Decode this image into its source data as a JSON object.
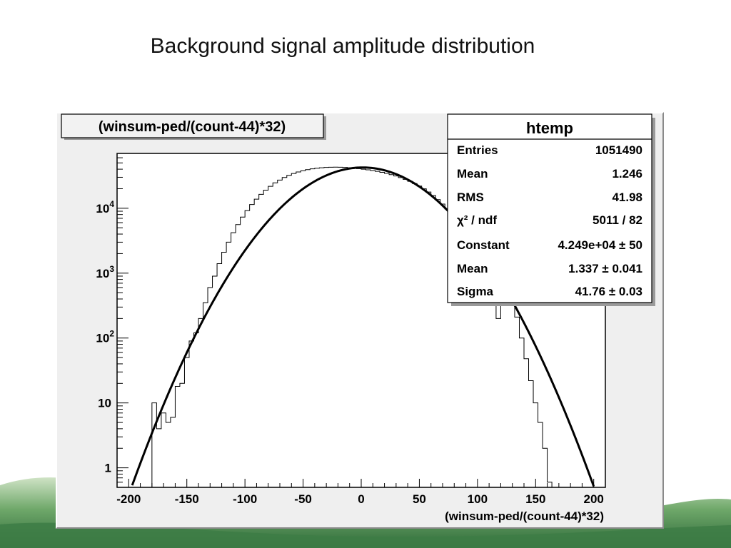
{
  "slide": {
    "title": "Background signal amplitude distribution"
  },
  "chart_data": {
    "type": "histogram",
    "title": "(winsum-ped/(count-44)*32)",
    "xlabel": "(winsum-ped/(count-44)*32)",
    "ylabel": "",
    "xlim": [
      -210,
      210
    ],
    "ylim": [
      0.5,
      70000
    ],
    "yscale": "log",
    "x_ticks": [
      "-200",
      "-150",
      "-100",
      "-50",
      "0",
      "50",
      "100",
      "150",
      "200"
    ],
    "y_ticks": [
      {
        "value": 1,
        "label": "1",
        "sup": ""
      },
      {
        "value": 10,
        "label": "10",
        "sup": ""
      },
      {
        "value": 100,
        "label": "10",
        "sup": "2"
      },
      {
        "value": 1000,
        "label": "10",
        "sup": "3"
      },
      {
        "value": 10000,
        "label": "10",
        "sup": "4"
      }
    ],
    "series": [
      {
        "kind": "histogram",
        "bins": [
          [
            -180,
            10
          ],
          [
            -176,
            4
          ],
          [
            -172,
            7
          ],
          [
            -168,
            5
          ],
          [
            -164,
            6
          ],
          [
            -160,
            18
          ],
          [
            -156,
            20
          ],
          [
            -152,
            50
          ],
          [
            -148,
            90
          ],
          [
            -144,
            120
          ],
          [
            -140,
            200
          ],
          [
            -136,
            350
          ],
          [
            -132,
            600
          ],
          [
            -128,
            900
          ],
          [
            -124,
            1400
          ],
          [
            -120,
            2100
          ],
          [
            -116,
            3000
          ],
          [
            -112,
            4200
          ],
          [
            -108,
            5600
          ],
          [
            -104,
            7300
          ],
          [
            -100,
            9200
          ],
          [
            -96,
            11400
          ],
          [
            -92,
            13800
          ],
          [
            -88,
            16400
          ],
          [
            -84,
            19000
          ],
          [
            -80,
            21800
          ],
          [
            -76,
            24600
          ],
          [
            -72,
            27200
          ],
          [
            -68,
            29800
          ],
          [
            -64,
            32100
          ],
          [
            -60,
            34300
          ],
          [
            -56,
            36200
          ],
          [
            -52,
            37900
          ],
          [
            -48,
            39300
          ],
          [
            -44,
            40500
          ],
          [
            -40,
            41400
          ],
          [
            -36,
            42100
          ],
          [
            -32,
            42600
          ],
          [
            -28,
            42900
          ],
          [
            -24,
            43000
          ],
          [
            -20,
            42900
          ],
          [
            -16,
            42600
          ],
          [
            -12,
            42100
          ],
          [
            -8,
            41500
          ],
          [
            -4,
            40800
          ],
          [
            0,
            40000
          ],
          [
            4,
            39100
          ],
          [
            8,
            38100
          ],
          [
            12,
            37000
          ],
          [
            16,
            35800
          ],
          [
            20,
            34400
          ],
          [
            24,
            33000
          ],
          [
            28,
            31400
          ],
          [
            32,
            29700
          ],
          [
            36,
            27900
          ],
          [
            40,
            26000
          ],
          [
            44,
            24000
          ],
          [
            48,
            22000
          ],
          [
            52,
            19900
          ],
          [
            56,
            17800
          ],
          [
            60,
            15700
          ],
          [
            64,
            13600
          ],
          [
            68,
            11600
          ],
          [
            72,
            9700
          ],
          [
            76,
            7900
          ],
          [
            80,
            6300
          ],
          [
            84,
            4900
          ],
          [
            88,
            3700
          ],
          [
            92,
            2700
          ],
          [
            96,
            1900
          ],
          [
            100,
            1300
          ],
          [
            104,
            850
          ],
          [
            108,
            540
          ],
          [
            112,
            330
          ],
          [
            116,
            200
          ],
          [
            120,
            1200
          ],
          [
            124,
            800
          ],
          [
            128,
            420
          ],
          [
            132,
            210
          ],
          [
            136,
            100
          ],
          [
            140,
            48
          ],
          [
            144,
            22
          ],
          [
            148,
            10
          ],
          [
            152,
            5
          ],
          [
            156,
            2
          ],
          [
            160,
            0.6
          ]
        ]
      },
      {
        "kind": "gaussian-fit",
        "constant": 42490,
        "mean": 1.337,
        "sigma": 41.76
      }
    ],
    "stats_box": {
      "title": "htemp",
      "rows": [
        {
          "label": "Entries",
          "value": "1051490"
        },
        {
          "label": "Mean",
          "value": "1.246"
        },
        {
          "label": "RMS",
          "value": "41.98"
        },
        {
          "label": "χ² / ndf",
          "value": "5011 / 82"
        },
        {
          "label": "Constant",
          "value": "4.249e+04 ± 50"
        },
        {
          "label": "Mean",
          "value": "1.337 ± 0.041"
        },
        {
          "label": "Sigma",
          "value": "41.76 ± 0.03"
        }
      ]
    }
  }
}
